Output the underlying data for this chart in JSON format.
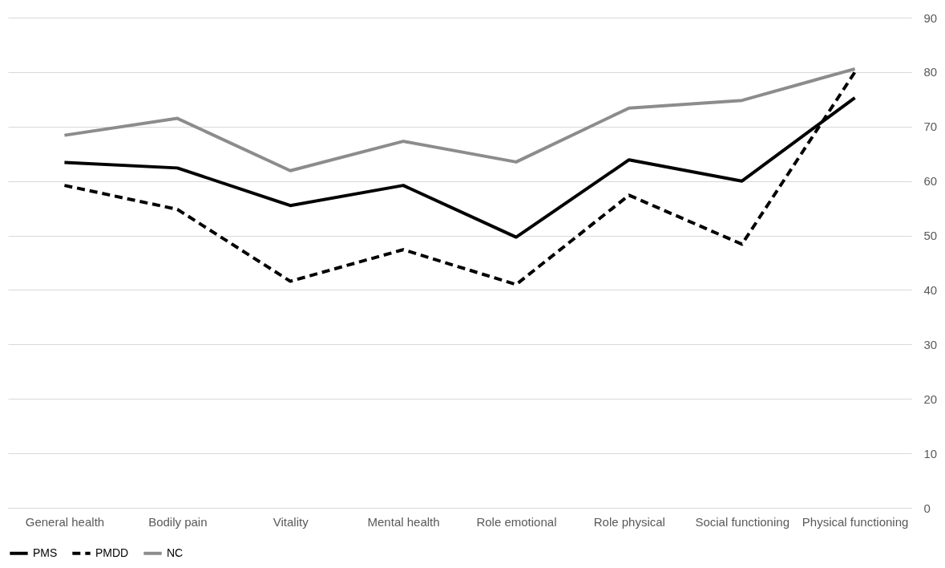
{
  "chart_data": {
    "type": "line",
    "categories": [
      "General health",
      "Bodily pain",
      "Vitality",
      "Mental health",
      "Role emotional",
      "Role physical",
      "Social functioning",
      "Physical functioning"
    ],
    "series": [
      {
        "name": "PMS",
        "color": "#000000",
        "line_style": "solid",
        "values": [
          63.4,
          62.4,
          55.5,
          59.2,
          49.7,
          63.9,
          60.0,
          75.3
        ]
      },
      {
        "name": "PMDD",
        "color": "#000000",
        "line_style": "dashed",
        "values": [
          59.2,
          54.8,
          41.6,
          47.4,
          41.0,
          57.4,
          48.4,
          80.0
        ]
      },
      {
        "name": "NC",
        "color": "#8c8c8c",
        "values": [
          68.4,
          71.5,
          61.9,
          67.3,
          63.5,
          73.4,
          74.8,
          80.6
        ]
      }
    ],
    "ylim": [
      0,
      90
    ],
    "yticks": [
      0,
      10,
      20,
      30,
      40,
      50,
      60,
      70,
      80,
      90
    ],
    "grid": "y",
    "legend": "bottom",
    "marker": "none"
  }
}
